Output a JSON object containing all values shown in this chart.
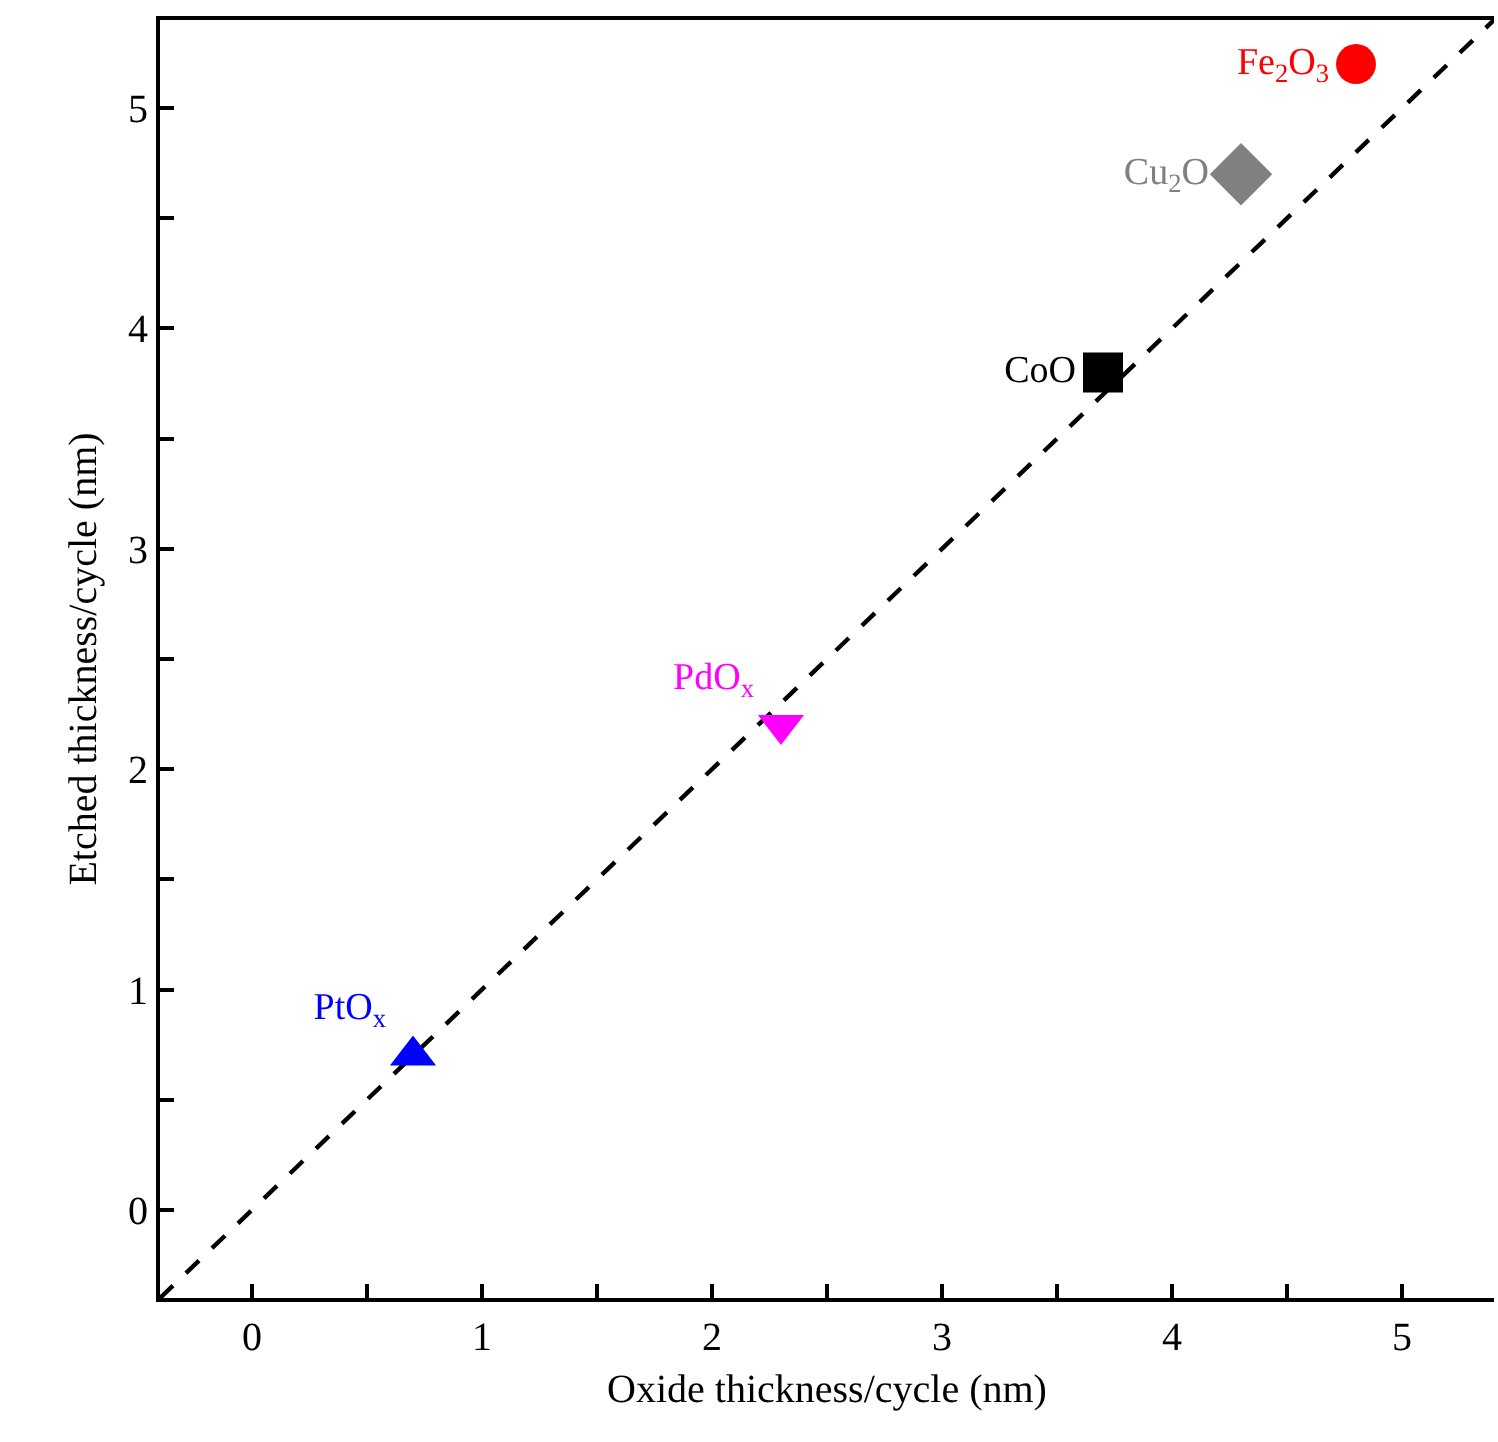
{
  "chart_data": {
    "type": "scatter",
    "xlabel": "Oxide thickness/cycle (nm)",
    "ylabel": "Etched thickness/cycle (nm)",
    "xlim": [
      -0.4,
      5.4
    ],
    "ylim": [
      -0.4,
      5.4
    ],
    "xticks": [
      0,
      {
        "value": 0.5,
        "label": null
      },
      1,
      {
        "value": 1.5,
        "label": null
      },
      2,
      {
        "value": 2.5,
        "label": null
      },
      3,
      {
        "value": 3.5,
        "label": null
      },
      4,
      {
        "value": 4.5,
        "label": null
      },
      5
    ],
    "yticks": [
      0,
      {
        "value": 0.5,
        "label": null
      },
      1,
      {
        "value": 1.5,
        "label": null
      },
      2,
      {
        "value": 2.5,
        "label": null
      },
      3,
      {
        "value": 3.5,
        "label": null
      },
      4,
      {
        "value": 4.5,
        "label": null
      },
      5
    ],
    "legend": false,
    "series": [
      {
        "type": "line",
        "x": [
          -0.4,
          5.4
        ],
        "values": [
          -0.4,
          5.4
        ],
        "color": "#000000",
        "line_style": "dashed",
        "marker": "none"
      },
      {
        "name": "PtO$_{x}$",
        "x": [
          0.7
        ],
        "values": [
          0.7
        ],
        "color": "#0000ff",
        "marker": "triangle"
      },
      {
        "name": "PdO$_{x}$",
        "x": [
          2.3
        ],
        "values": [
          2.2
        ],
        "color": "#ff00ff",
        "marker": "triangle-down"
      },
      {
        "name": "CoO",
        "x": [
          3.7
        ],
        "values": [
          3.8
        ],
        "color": "#000000",
        "marker": "square"
      },
      {
        "name": "Cu$_{2}$O",
        "x": [
          4.3
        ],
        "values": [
          4.7
        ],
        "color": "#808080",
        "marker": "diamond"
      },
      {
        "name": "Fe$_{2}$O$_{3}$",
        "x": [
          4.8
        ],
        "values": [
          5.2
        ],
        "color": "#ff0000",
        "marker": "circle"
      }
    ]
  }
}
